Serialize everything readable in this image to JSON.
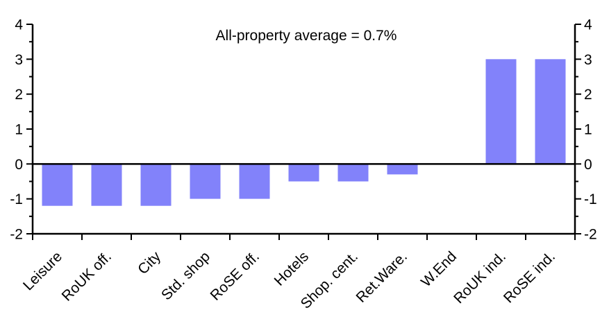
{
  "chart_data": {
    "type": "bar",
    "title": "All-property average = 0.7%",
    "categories": [
      "Leisure",
      "RoUK off.",
      "City",
      "Std. shop",
      "RoSE off.",
      "Hotels",
      "Shop. cent.",
      "Ret.Ware.",
      "W.End",
      "RoUK ind.",
      "RoSE ind."
    ],
    "values": [
      -1.2,
      -1.2,
      -1.2,
      -1.0,
      -1.0,
      -0.5,
      -0.5,
      -0.3,
      0.0,
      3.0,
      3.0
    ],
    "xlabel": "",
    "ylabel": "",
    "ylim": [
      -2,
      4
    ],
    "yticks": [
      -2,
      -1,
      0,
      1,
      2,
      3,
      4
    ],
    "yminor_step": 0.5,
    "dual_y_axis": true,
    "grid": false,
    "legend_position": "none",
    "bar_color": "#8282FA",
    "axis_color": "#000000"
  }
}
